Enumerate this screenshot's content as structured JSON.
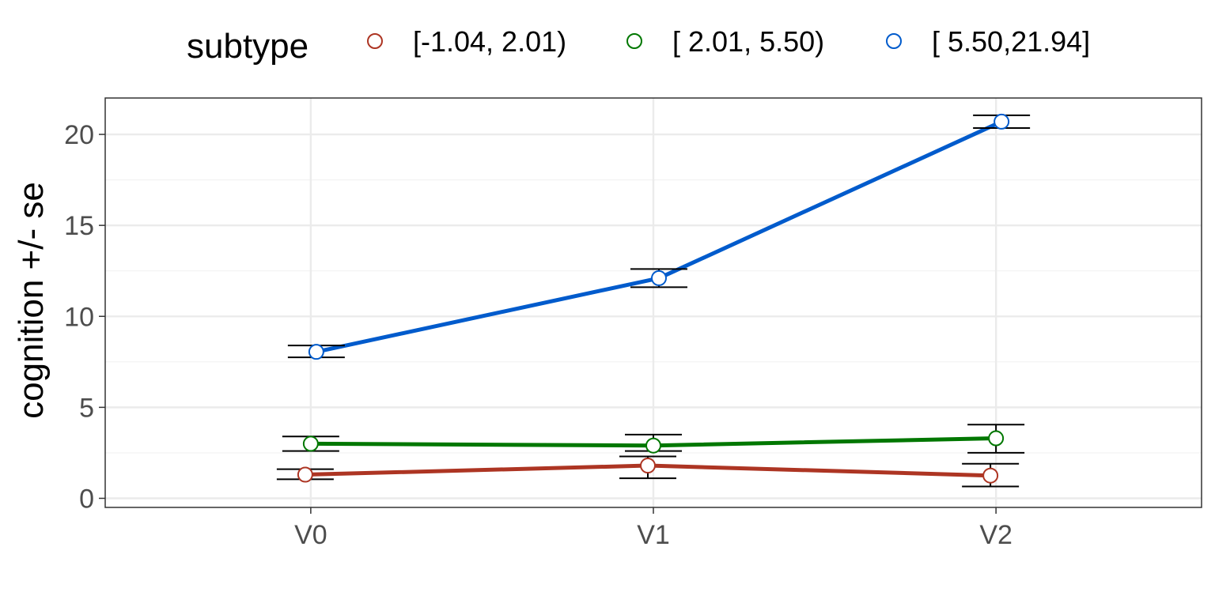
{
  "chart_data": {
    "type": "line",
    "title": "",
    "xlabel": "",
    "ylabel": "cognition  +/- se",
    "categories": [
      "V0",
      "V1",
      "V2"
    ],
    "ylim": [
      -0.5,
      22
    ],
    "yticks": [
      0,
      5,
      10,
      15,
      20
    ],
    "grid": true,
    "legend": {
      "title": "subtype",
      "placement": "top"
    },
    "series": [
      {
        "name": "[-1.04, 2.01)",
        "color": "#ad3523",
        "values": [
          1.3,
          1.8,
          1.25
        ],
        "se_low": [
          1.05,
          1.1,
          0.65
        ],
        "se_high": [
          1.6,
          2.3,
          1.9
        ]
      },
      {
        "name": "[ 2.01, 5.50)",
        "color": "#007700",
        "values": [
          3.0,
          2.9,
          3.3
        ],
        "se_low": [
          2.6,
          2.6,
          2.5
        ],
        "se_high": [
          3.4,
          3.5,
          4.05
        ]
      },
      {
        "name": "[ 5.50,21.94]",
        "color": "#005bcc",
        "values": [
          8.05,
          12.1,
          20.7
        ],
        "se_low": [
          7.75,
          11.6,
          20.35
        ],
        "se_high": [
          8.4,
          12.6,
          21.05
        ]
      }
    ]
  }
}
